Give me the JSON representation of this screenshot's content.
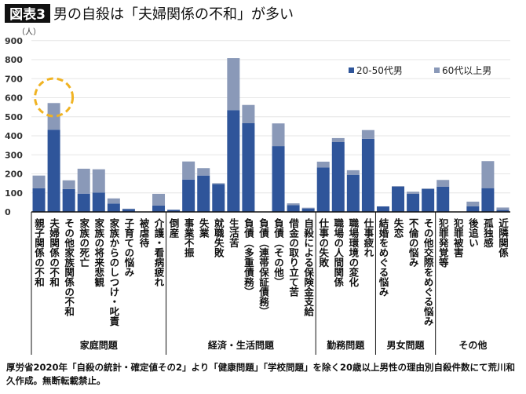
{
  "chart_data": {
    "type": "bar",
    "stacked": true,
    "badge": "図表3",
    "title": "男の自殺は「夫婦関係の不和」が多い",
    "ylabel": "（人）",
    "ylim": [
      0,
      900
    ],
    "yticks": [
      "0",
      "100",
      "200",
      "300",
      "400",
      "500",
      "600",
      "700",
      "800",
      "900"
    ],
    "grid": true,
    "legend_position": "top-right",
    "colors": {
      "series1": "#2f559a",
      "series2": "#8a99b8",
      "highlight": "#f0b323"
    },
    "categories": [
      "親子関係の不和",
      "夫婦関係の不和",
      "その他家族関係の不和",
      "家族の死亡",
      "家族の将来悲観",
      "家族からのしつけ・叱責",
      "子育ての悩み",
      "被虐待",
      "介護・看病疲れ",
      "倒産",
      "事業不振",
      "失業",
      "就職失敗",
      "生活苦",
      "負債（多重債務）",
      "負債（連帯保証債務）",
      "負債（その他）",
      "借金の取り立て苦",
      "自殺による保険金支給",
      "仕事の失敗",
      "職場の人間関係",
      "職場環境の変化",
      "仕事疲れ",
      "結婚をめぐる悩み",
      "失恋",
      "不倫の悩み",
      "その他交際をめぐる悩み",
      "犯罪発覚等",
      "犯罪被害",
      "後追い",
      "孤独感",
      "近隣関係"
    ],
    "series": [
      {
        "name": "20-50代男",
        "values": [
          124,
          432,
          120,
          96,
          102,
          44,
          15,
          1,
          34,
          11,
          170,
          191,
          146,
          535,
          466,
          2,
          346,
          36,
          18,
          234,
          367,
          195,
          384,
          29,
          133,
          95,
          121,
          133,
          1,
          30,
          125,
          10
        ]
      },
      {
        "name": "60代以上男",
        "values": [
          67,
          140,
          46,
          131,
          122,
          27,
          2,
          0,
          61,
          1,
          95,
          39,
          5,
          273,
          96,
          0,
          119,
          9,
          4,
          30,
          21,
          24,
          46,
          0,
          3,
          11,
          2,
          35,
          0,
          24,
          142,
          13
        ]
      }
    ],
    "groups": [
      {
        "label": "家庭問題",
        "count": 9
      },
      {
        "label": "経済・生活問題",
        "count": 10
      },
      {
        "label": "勤務問題",
        "count": 4
      },
      {
        "label": "男女問題",
        "count": 4
      },
      {
        "label": "その他",
        "count": 5
      }
    ],
    "highlighted_category": "夫婦関係の不和"
  },
  "footnote": "厚労省2020年「自殺の統計・確定値その2」より「健康問題」「学校問題」を除く20歳以上男性の理由別自殺件数にて荒川和久作成。無断転載禁止。"
}
